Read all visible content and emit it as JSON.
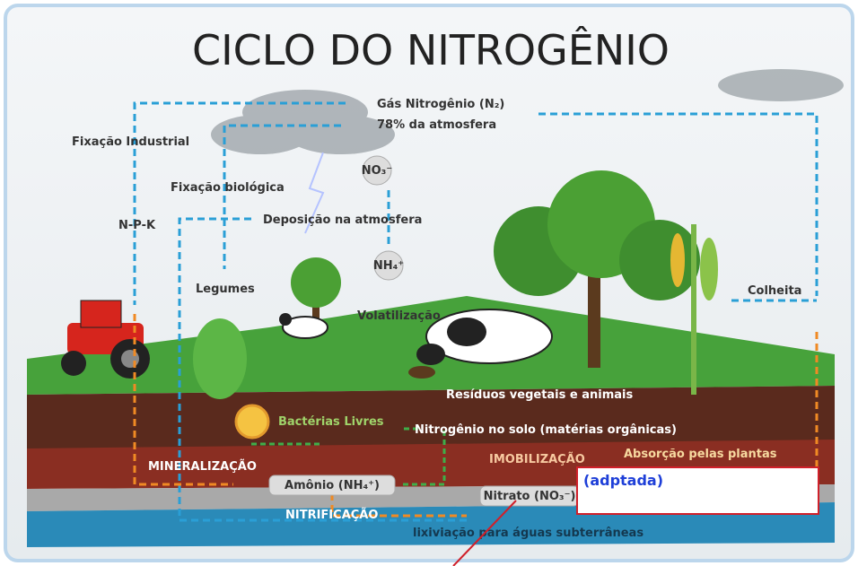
{
  "title": "CICLO DO NITROGÊNIO",
  "labels": {
    "gas": "Gás Nitrogênio (N₂)",
    "atmosphere": "78% da atmosfera",
    "industrial": "Fixação Industrial",
    "biological": "Fixação biológica",
    "npk": "N-P-K",
    "deposition": "Deposição na atmosfera",
    "no3": "NO₃⁻",
    "nh4": "NH₄⁺",
    "legumes": "Legumes",
    "volatilization": "Volatilização",
    "harvest": "Colheita",
    "residues": "Resíduos vegetais e animais",
    "bacteria": "Bactérias Livres",
    "soil_nitrogen": "Nitrogênio no solo (matérias orgânicas)",
    "mineralization": "MINERALIZAÇÃO",
    "immobilization": "IMOBILIZAÇÃO",
    "absorption": "Absorção pelas plantas",
    "ammonium": "Amônio (NH₄⁺)",
    "nitrate": "Nitrato (NO₃⁻)",
    "nitrification": "NITRIFICAÇÃO",
    "leaching": "lixiviação para águas subterrâneas"
  },
  "note": "(adptada)"
}
